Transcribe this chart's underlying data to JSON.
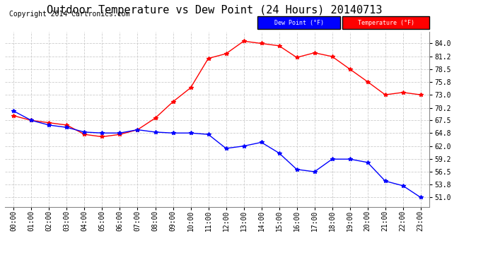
{
  "title": "Outdoor Temperature vs Dew Point (24 Hours) 20140713",
  "copyright": "Copyright 2014 Cartronics.com",
  "x_labels": [
    "00:00",
    "01:00",
    "02:00",
    "03:00",
    "04:00",
    "05:00",
    "06:00",
    "07:00",
    "08:00",
    "09:00",
    "10:00",
    "11:00",
    "12:00",
    "13:00",
    "14:00",
    "15:00",
    "16:00",
    "17:00",
    "18:00",
    "19:00",
    "20:00",
    "21:00",
    "22:00",
    "23:00"
  ],
  "temperature": [
    68.5,
    67.5,
    67.0,
    66.5,
    64.5,
    64.0,
    64.5,
    65.5,
    68.0,
    71.5,
    74.5,
    80.8,
    81.8,
    84.5,
    84.0,
    83.5,
    81.0,
    82.0,
    81.2,
    78.5,
    75.8,
    73.0,
    73.5,
    73.0
  ],
  "dew_point": [
    69.5,
    67.5,
    66.5,
    66.0,
    65.0,
    64.8,
    64.8,
    65.5,
    65.0,
    64.8,
    64.8,
    64.5,
    61.5,
    62.0,
    62.8,
    60.5,
    57.0,
    56.5,
    59.2,
    59.2,
    58.5,
    54.5,
    53.5,
    51.0
  ],
  "temp_color": "#FF0000",
  "dew_color": "#0000FF",
  "bg_color": "#FFFFFF",
  "plot_bg_color": "#FFFFFF",
  "grid_color": "#CCCCCC",
  "ylim_min": 49.0,
  "ylim_max": 86.5,
  "yticks": [
    51.0,
    53.8,
    56.5,
    59.2,
    62.0,
    64.8,
    67.5,
    70.2,
    73.0,
    75.8,
    78.5,
    81.2,
    84.0
  ],
  "legend_dew_label": "Dew Point (°F)",
  "legend_temp_label": "Temperature (°F)",
  "title_fontsize": 11,
  "tick_fontsize": 7,
  "copyright_fontsize": 7
}
